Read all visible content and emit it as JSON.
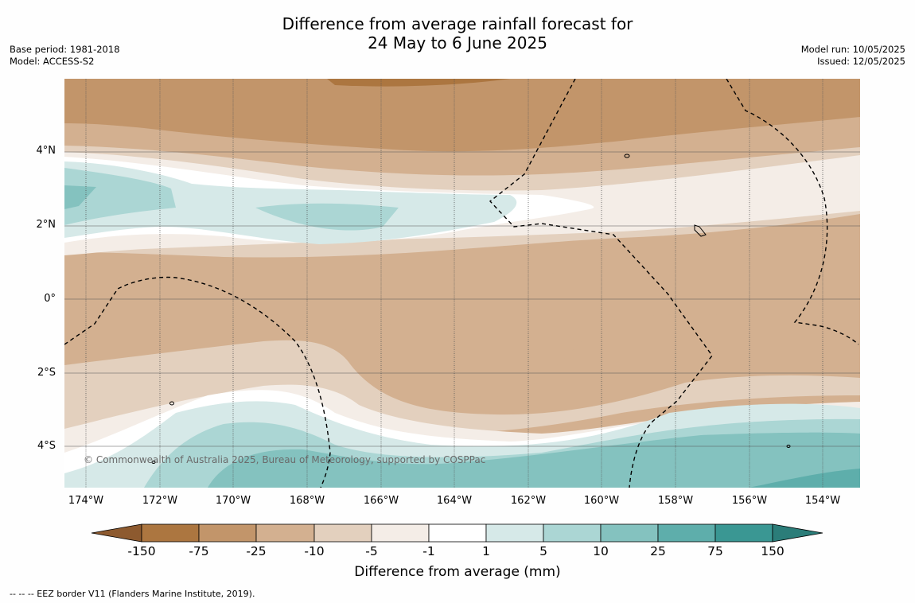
{
  "title_line1": "Difference from average rainfall forecast for",
  "title_line2": "24 May to 6 June 2025",
  "base_period": "Base period: 1981-2018",
  "model": "Model: ACCESS-S2",
  "model_run": "Model run: 10/05/2025",
  "issued": "Issued: 12/05/2025",
  "copyright": "© Commonwealth of Australia 2025, Bureau of Meteorology, supported by COSPPac",
  "y_ticks": [
    "4°N",
    "2°N",
    "0°",
    "2°S",
    "4°S"
  ],
  "x_ticks": [
    "174°W",
    "172°W",
    "170°W",
    "168°W",
    "166°W",
    "164°W",
    "162°W",
    "160°W",
    "158°W",
    "156°W",
    "154°W"
  ],
  "colorbar": {
    "title": "Difference from average (mm)",
    "labels": [
      "-150",
      "-75",
      "-25",
      "-10",
      "-5",
      "-1",
      "1",
      "5",
      "10",
      "25",
      "75",
      "150"
    ],
    "colors": [
      "#8d5a2f",
      "#ac7640",
      "#c2956a",
      "#d3b090",
      "#e3d0be",
      "#f4ede7",
      "#ffffff",
      "#d6e9e8",
      "#abd6d4",
      "#84c2bf",
      "#5eaeab",
      "#3a9793",
      "#2b7d79"
    ]
  },
  "footnote": "--  --  -- EEZ border V11 (Flanders Marine Institute, 2019)."
}
